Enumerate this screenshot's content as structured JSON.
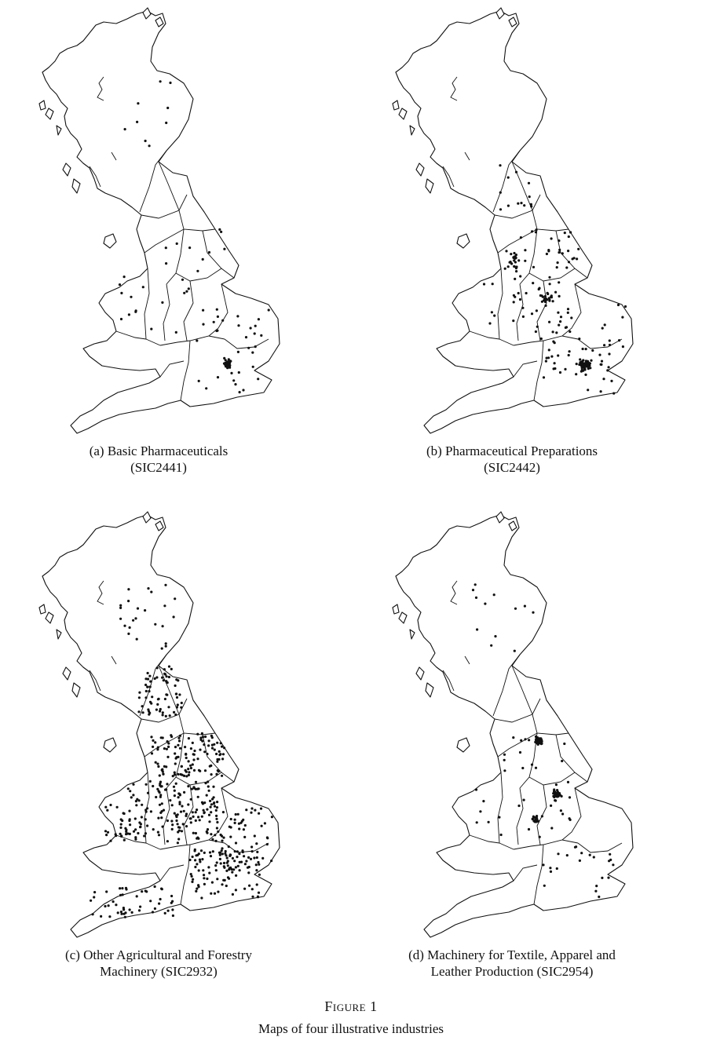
{
  "figure": {
    "label": "Figure 1",
    "title": "Maps of four illustrative industries"
  },
  "panels": [
    {
      "id": "a",
      "caption_line1": "(a) Basic Pharmaceuticals",
      "caption_line2": "(SIC2441)",
      "density": "sparse",
      "dot_color": "#111111"
    },
    {
      "id": "b",
      "caption_line1": "(b) Pharmaceutical Preparations",
      "caption_line2": "(SIC2442)",
      "density": "moderate",
      "dot_color": "#111111"
    },
    {
      "id": "c",
      "caption_line1": "(c) Other Agricultural and Forestry",
      "caption_line2": "Machinery (SIC2932)",
      "density": "dense",
      "dot_color": "#111111"
    },
    {
      "id": "d",
      "caption_line1": "(d) Machinery for Textile, Apparel and",
      "caption_line2": "Leather Production (SIC2954)",
      "density": "clustered",
      "dot_color": "#111111"
    }
  ]
}
